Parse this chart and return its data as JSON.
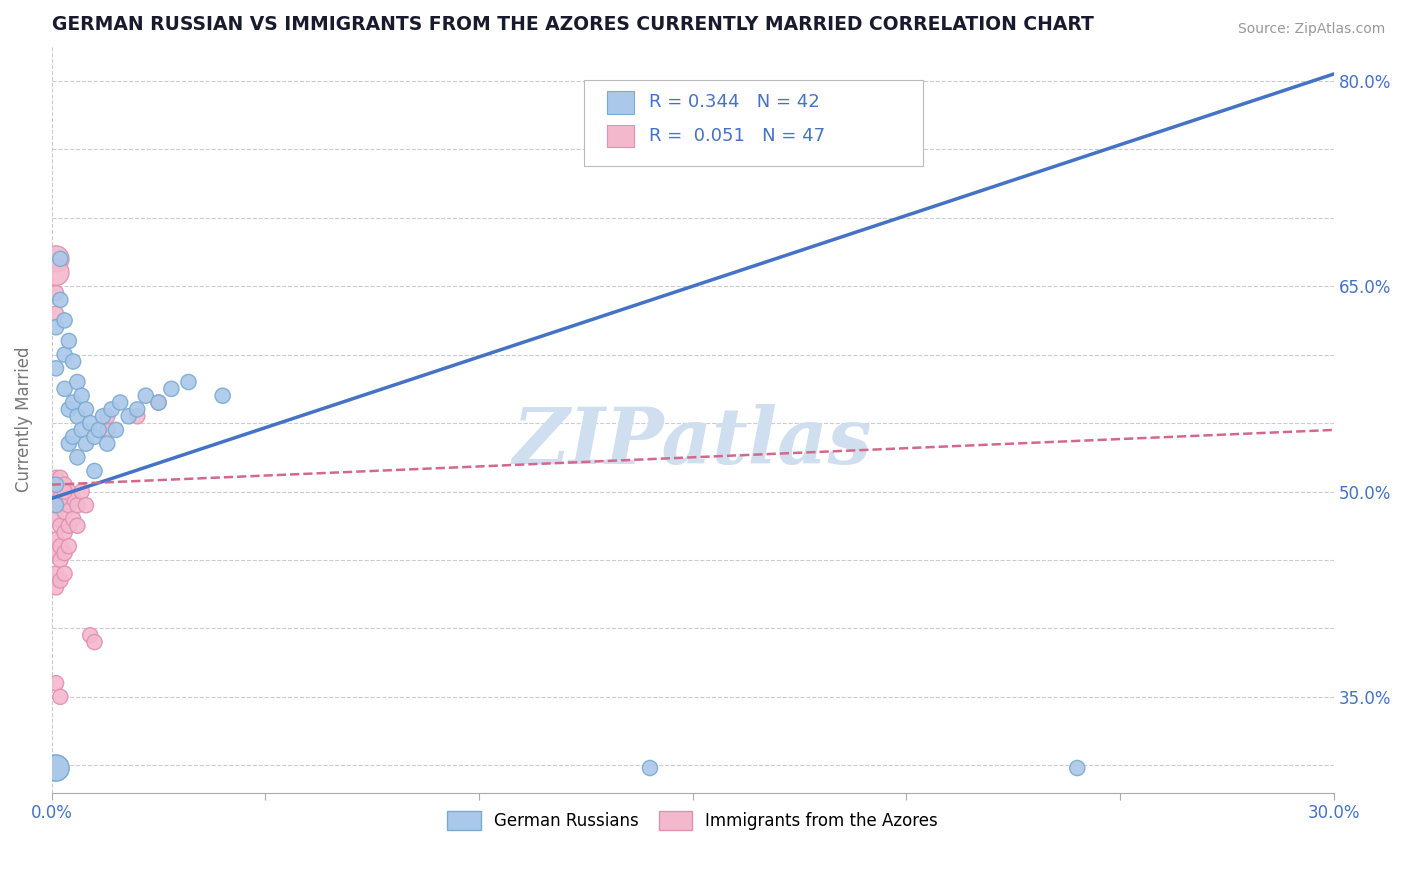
{
  "title": "GERMAN RUSSIAN VS IMMIGRANTS FROM THE AZORES CURRENTLY MARRIED CORRELATION CHART",
  "source": "Source: ZipAtlas.com",
  "ylabel": "Currently Married",
  "watermark": "ZIPatlas",
  "xlim": [
    0.0,
    0.3
  ],
  "ylim": [
    0.28,
    0.825
  ],
  "ytick_positions": [
    0.3,
    0.35,
    0.4,
    0.45,
    0.5,
    0.55,
    0.6,
    0.65,
    0.7,
    0.75,
    0.8
  ],
  "ytick_labels_right": [
    "",
    "35.0%",
    "",
    "",
    "50.0%",
    "",
    "",
    "65.0%",
    "",
    "",
    "80.0%"
  ],
  "R_blue": 0.344,
  "N_blue": 42,
  "R_pink": 0.051,
  "N_pink": 47,
  "blue_line": [
    [
      0.0,
      0.495
    ],
    [
      0.3,
      0.805
    ]
  ],
  "pink_line": [
    [
      0.0,
      0.505
    ],
    [
      0.3,
      0.545
    ]
  ],
  "blue_scatter": [
    [
      0.001,
      0.59
    ],
    [
      0.001,
      0.62
    ],
    [
      0.002,
      0.67
    ],
    [
      0.002,
      0.64
    ],
    [
      0.003,
      0.625
    ],
    [
      0.003,
      0.6
    ],
    [
      0.003,
      0.575
    ],
    [
      0.004,
      0.61
    ],
    [
      0.004,
      0.56
    ],
    [
      0.004,
      0.535
    ],
    [
      0.005,
      0.595
    ],
    [
      0.005,
      0.565
    ],
    [
      0.005,
      0.54
    ],
    [
      0.006,
      0.58
    ],
    [
      0.006,
      0.555
    ],
    [
      0.006,
      0.525
    ],
    [
      0.007,
      0.57
    ],
    [
      0.007,
      0.545
    ],
    [
      0.008,
      0.56
    ],
    [
      0.008,
      0.535
    ],
    [
      0.009,
      0.55
    ],
    [
      0.01,
      0.54
    ],
    [
      0.01,
      0.515
    ],
    [
      0.011,
      0.545
    ],
    [
      0.012,
      0.555
    ],
    [
      0.013,
      0.535
    ],
    [
      0.014,
      0.56
    ],
    [
      0.015,
      0.545
    ],
    [
      0.016,
      0.565
    ],
    [
      0.018,
      0.555
    ],
    [
      0.02,
      0.56
    ],
    [
      0.022,
      0.57
    ],
    [
      0.025,
      0.565
    ],
    [
      0.028,
      0.575
    ],
    [
      0.032,
      0.58
    ],
    [
      0.04,
      0.57
    ],
    [
      0.001,
      0.298
    ],
    [
      0.001,
      0.298
    ],
    [
      0.14,
      0.298
    ],
    [
      0.24,
      0.298
    ],
    [
      0.001,
      0.49
    ],
    [
      0.001,
      0.505
    ]
  ],
  "pink_scatter": [
    [
      0.001,
      0.67
    ],
    [
      0.001,
      0.66
    ],
    [
      0.001,
      0.645
    ],
    [
      0.001,
      0.63
    ],
    [
      0.001,
      0.51
    ],
    [
      0.001,
      0.5
    ],
    [
      0.001,
      0.49
    ],
    [
      0.001,
      0.48
    ],
    [
      0.001,
      0.465
    ],
    [
      0.001,
      0.455
    ],
    [
      0.001,
      0.44
    ],
    [
      0.001,
      0.43
    ],
    [
      0.002,
      0.51
    ],
    [
      0.002,
      0.5
    ],
    [
      0.002,
      0.49
    ],
    [
      0.002,
      0.475
    ],
    [
      0.002,
      0.46
    ],
    [
      0.002,
      0.45
    ],
    [
      0.002,
      0.435
    ],
    [
      0.002,
      0.5
    ],
    [
      0.003,
      0.505
    ],
    [
      0.003,
      0.495
    ],
    [
      0.003,
      0.485
    ],
    [
      0.003,
      0.47
    ],
    [
      0.003,
      0.455
    ],
    [
      0.003,
      0.44
    ],
    [
      0.004,
      0.5
    ],
    [
      0.004,
      0.49
    ],
    [
      0.004,
      0.475
    ],
    [
      0.004,
      0.46
    ],
    [
      0.005,
      0.495
    ],
    [
      0.005,
      0.48
    ],
    [
      0.006,
      0.49
    ],
    [
      0.006,
      0.475
    ],
    [
      0.007,
      0.5
    ],
    [
      0.008,
      0.49
    ],
    [
      0.009,
      0.395
    ],
    [
      0.01,
      0.39
    ],
    [
      0.013,
      0.545
    ],
    [
      0.013,
      0.555
    ],
    [
      0.02,
      0.555
    ],
    [
      0.025,
      0.565
    ],
    [
      0.001,
      0.36
    ],
    [
      0.002,
      0.35
    ],
    [
      0.001,
      0.5
    ],
    [
      0.002,
      0.495
    ],
    [
      0.003,
      0.5
    ]
  ],
  "blue_sizes_default": 120,
  "blue_large_size": 350,
  "pink_sizes_default": 120,
  "pink_large_size": 350,
  "legend_labels": [
    "German Russians",
    "Immigrants from the Azores"
  ],
  "title_color": "#1a1a2e",
  "axis_label_color": "#777777",
  "tick_color_right": "#4472c4",
  "grid_color": "#cccccc",
  "blue_line_color": "#4472c4",
  "pink_line_color": "#d4688a",
  "blue_fill": "#aac8ea",
  "blue_edge": "#7aaad0",
  "pink_fill": "#f4b8cc",
  "pink_edge": "#e090b0",
  "watermark_color": "#d0dff0"
}
